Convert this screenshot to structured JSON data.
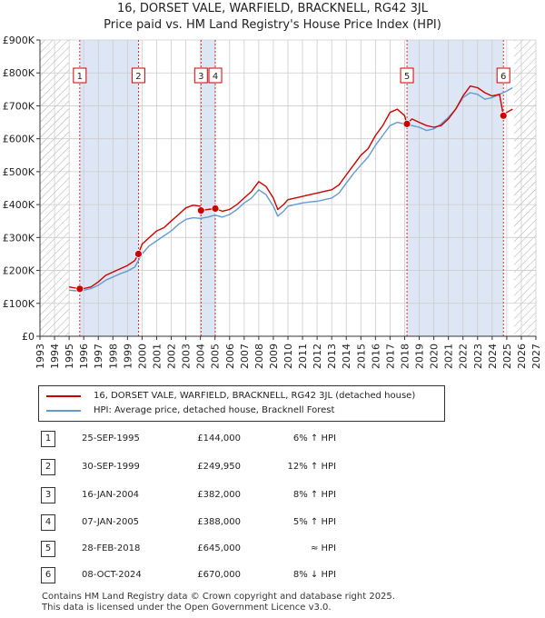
{
  "title_line1": "16, DORSET VALE, WARFIELD, BRACKNELL, RG42 3JL",
  "title_line2": "Price paid vs. HM Land Registry's House Price Index (HPI)",
  "colors": {
    "property": "#cc0000",
    "hpi": "#6699cc",
    "shade": "#dde6f5",
    "grid": "#cccccc",
    "marker_border": "#cc0000"
  },
  "legend": {
    "property_label": "16, DORSET VALE, WARFIELD, BRACKNELL, RG42 3JL (detached house)",
    "hpi_label": "HPI: Average price, detached house, Bracknell Forest"
  },
  "transactions": [
    {
      "num": "1",
      "date": "25-SEP-1995",
      "price": "£144,000",
      "hpi": "6% ↑ HPI"
    },
    {
      "num": "2",
      "date": "30-SEP-1999",
      "price": "£249,950",
      "hpi": "12% ↑ HPI"
    },
    {
      "num": "3",
      "date": "16-JAN-2004",
      "price": "£382,000",
      "hpi": "8% ↑ HPI"
    },
    {
      "num": "4",
      "date": "07-JAN-2005",
      "price": "£388,000",
      "hpi": "5% ↑ HPI"
    },
    {
      "num": "5",
      "date": "28-FEB-2018",
      "price": "£645,000",
      "hpi": "≈ HPI"
    },
    {
      "num": "6",
      "date": "08-OCT-2024",
      "price": "£670,000",
      "hpi": "8% ↓ HPI"
    }
  ],
  "footer_line1": "Contains HM Land Registry data © Crown copyright and database right 2025.",
  "footer_line2": "This data is licensed under the Open Government Licence v3.0.",
  "chart_data": {
    "type": "line",
    "title": "16, DORSET VALE, WARFIELD, BRACKNELL, RG42 3JL",
    "subtitle": "Price paid vs. HM Land Registry's House Price Index (HPI)",
    "xlim": [
      1993,
      2027
    ],
    "ylim": [
      0,
      900000
    ],
    "x_ticks": [
      "1993",
      "1994",
      "1995",
      "1996",
      "1997",
      "1998",
      "1999",
      "2000",
      "2001",
      "2002",
      "2003",
      "2004",
      "2005",
      "2006",
      "2007",
      "2008",
      "2009",
      "2010",
      "2011",
      "2012",
      "2013",
      "2014",
      "2015",
      "2016",
      "2017",
      "2018",
      "2019",
      "2020",
      "2021",
      "2022",
      "2023",
      "2024",
      "2025",
      "2026",
      "2027"
    ],
    "y_ticks": [
      {
        "value": 0,
        "label": "£0"
      },
      {
        "value": 100000,
        "label": "£100K"
      },
      {
        "value": 200000,
        "label": "£200K"
      },
      {
        "value": 300000,
        "label": "£300K"
      },
      {
        "value": 400000,
        "label": "£400K"
      },
      {
        "value": 500000,
        "label": "£500K"
      },
      {
        "value": 600000,
        "label": "£600K"
      },
      {
        "value": 700000,
        "label": "£700K"
      },
      {
        "value": 800000,
        "label": "£800K"
      },
      {
        "value": 900000,
        "label": "£900K"
      }
    ],
    "hatched_before": 1995,
    "hatched_after": 2025.5,
    "shaded_periods": [
      [
        1995.73,
        1999.75
      ],
      [
        2004.04,
        2005.02
      ],
      [
        2018.16,
        2024.77
      ]
    ],
    "sales": [
      {
        "label": "1",
        "x": 1995.73,
        "y": 144000
      },
      {
        "label": "2",
        "x": 1999.75,
        "y": 249950
      },
      {
        "label": "3",
        "x": 2004.04,
        "y": 382000
      },
      {
        "label": "4",
        "x": 2005.02,
        "y": 388000
      },
      {
        "label": "5",
        "x": 2018.16,
        "y": 645000
      },
      {
        "label": "6",
        "x": 2024.77,
        "y": 670000
      }
    ],
    "series": [
      {
        "name": "16, DORSET VALE, WARFIELD, BRACKNELL, RG42 3JL (detached house)",
        "color": "#cc0000",
        "x": [
          1995.0,
          1995.73,
          1996.0,
          1996.5,
          1997.0,
          1997.5,
          1998.0,
          1998.5,
          1999.0,
          1999.5,
          1999.75,
          2000.0,
          2000.5,
          2001.0,
          2001.5,
          2002.0,
          2002.5,
          2003.0,
          2003.5,
          2004.0,
          2004.04,
          2004.5,
          2005.02,
          2005.5,
          2006.0,
          2006.5,
          2007.0,
          2007.5,
          2008.0,
          2008.5,
          2009.0,
          2009.3,
          2009.7,
          2010.0,
          2010.5,
          2011.0,
          2011.5,
          2012.0,
          2012.5,
          2013.0,
          2013.5,
          2014.0,
          2014.5,
          2015.0,
          2015.5,
          2016.0,
          2016.5,
          2017.0,
          2017.5,
          2018.0,
          2018.16,
          2018.5,
          2019.0,
          2019.5,
          2020.0,
          2020.5,
          2021.0,
          2021.5,
          2022.0,
          2022.5,
          2023.0,
          2023.5,
          2024.0,
          2024.5,
          2024.77,
          2025.0,
          2025.4
        ],
        "y": [
          150000,
          144000,
          145000,
          150000,
          165000,
          185000,
          195000,
          205000,
          215000,
          230000,
          249950,
          280000,
          300000,
          320000,
          330000,
          350000,
          370000,
          390000,
          398000,
          395000,
          382000,
          385000,
          388000,
          380000,
          385000,
          400000,
          420000,
          440000,
          470000,
          455000,
          420000,
          385000,
          400000,
          415000,
          420000,
          425000,
          430000,
          435000,
          440000,
          445000,
          460000,
          490000,
          520000,
          550000,
          570000,
          610000,
          640000,
          680000,
          690000,
          670000,
          645000,
          660000,
          650000,
          640000,
          635000,
          640000,
          660000,
          690000,
          730000,
          760000,
          755000,
          740000,
          730000,
          735000,
          670000,
          680000,
          690000
        ]
      },
      {
        "name": "HPI: Average price, detached house, Bracknell Forest",
        "color": "#6699cc",
        "x": [
          1995.0,
          1995.5,
          1996.0,
          1996.5,
          1997.0,
          1997.5,
          1998.0,
          1998.5,
          1999.0,
          1999.5,
          2000.0,
          2000.5,
          2001.0,
          2001.5,
          2002.0,
          2002.5,
          2003.0,
          2003.5,
          2004.0,
          2004.5,
          2005.0,
          2005.5,
          2006.0,
          2006.5,
          2007.0,
          2007.5,
          2008.0,
          2008.5,
          2009.0,
          2009.3,
          2009.7,
          2010.0,
          2010.5,
          2011.0,
          2011.5,
          2012.0,
          2012.5,
          2013.0,
          2013.5,
          2014.0,
          2014.5,
          2015.0,
          2015.5,
          2016.0,
          2016.5,
          2017.0,
          2017.5,
          2018.0,
          2018.5,
          2019.0,
          2019.5,
          2020.0,
          2020.5,
          2021.0,
          2021.5,
          2022.0,
          2022.5,
          2023.0,
          2023.5,
          2024.0,
          2024.5,
          2025.0,
          2025.4
        ],
        "y": [
          140000,
          138000,
          140000,
          145000,
          155000,
          170000,
          180000,
          190000,
          198000,
          210000,
          250000,
          275000,
          290000,
          305000,
          320000,
          340000,
          355000,
          360000,
          358000,
          362000,
          368000,
          362000,
          370000,
          385000,
          405000,
          420000,
          445000,
          430000,
          395000,
          365000,
          380000,
          395000,
          400000,
          405000,
          408000,
          410000,
          415000,
          420000,
          435000,
          465000,
          495000,
          520000,
          545000,
          580000,
          610000,
          640000,
          650000,
          645000,
          640000,
          635000,
          625000,
          630000,
          645000,
          665000,
          690000,
          725000,
          740000,
          735000,
          720000,
          725000,
          735000,
          745000,
          755000
        ]
      }
    ]
  }
}
